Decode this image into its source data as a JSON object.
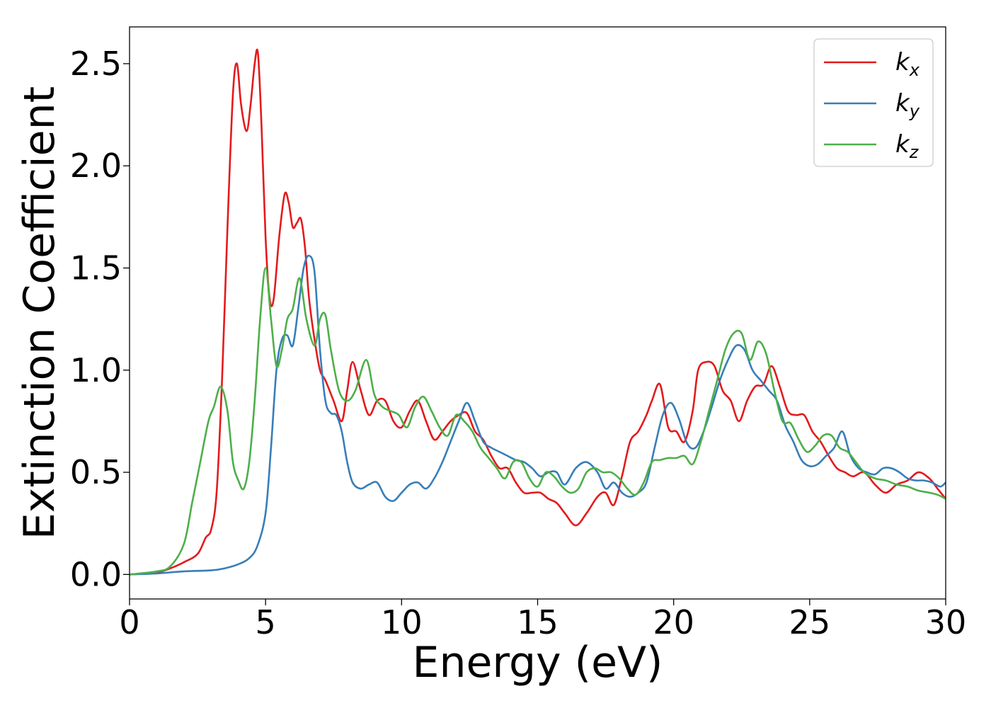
{
  "chart_data": {
    "type": "line",
    "xlabel": "Energy (eV)",
    "ylabel": "Extinction Coefficient",
    "xlim": [
      0,
      30
    ],
    "ylim": [
      -0.12,
      2.68
    ],
    "xticks": [
      0,
      5,
      10,
      15,
      20,
      25,
      30
    ],
    "xtick_labels": [
      "0",
      "5",
      "10",
      "15",
      "20",
      "25",
      "30"
    ],
    "yticks": [
      0.0,
      0.5,
      1.0,
      1.5,
      2.0,
      2.5
    ],
    "ytick_labels": [
      "0.0",
      "0.5",
      "1.0",
      "1.5",
      "2.0",
      "2.5"
    ],
    "grid": false,
    "legend_position": "top-right",
    "series": [
      {
        "name": "k",
        "subscript": "x",
        "color": "#e41a1c",
        "x": [
          0,
          1,
          1.5,
          2,
          2.5,
          2.8,
          3.0,
          3.2,
          3.4,
          3.6,
          3.8,
          3.95,
          4.1,
          4.3,
          4.45,
          4.6,
          4.72,
          4.85,
          5.0,
          5.15,
          5.3,
          5.5,
          5.7,
          5.85,
          6.0,
          6.15,
          6.3,
          6.45,
          6.6,
          6.8,
          7.0,
          7.2,
          7.5,
          7.8,
          8.0,
          8.2,
          8.5,
          8.8,
          9.1,
          9.4,
          9.7,
          10.0,
          10.3,
          10.6,
          10.9,
          11.2,
          11.5,
          11.8,
          12.1,
          12.4,
          12.7,
          13.0,
          13.3,
          13.6,
          13.9,
          14.2,
          14.5,
          14.8,
          15.1,
          15.4,
          15.7,
          16.0,
          16.4,
          16.8,
          17.2,
          17.5,
          17.8,
          18.1,
          18.4,
          18.7,
          19.0,
          19.2,
          19.5,
          19.8,
          20.1,
          20.4,
          20.7,
          20.9,
          21.2,
          21.5,
          21.8,
          22.1,
          22.4,
          22.7,
          23.0,
          23.3,
          23.6,
          23.9,
          24.2,
          24.5,
          24.8,
          25.1,
          25.4,
          25.7,
          26.0,
          26.3,
          26.6,
          27.0,
          27.4,
          27.8,
          28.2,
          28.6,
          29.0,
          29.4,
          29.7,
          30.0
        ],
        "values": [
          0,
          0.01,
          0.03,
          0.06,
          0.1,
          0.18,
          0.22,
          0.4,
          0.95,
          1.7,
          2.35,
          2.5,
          2.3,
          2.17,
          2.3,
          2.5,
          2.55,
          2.2,
          1.65,
          1.35,
          1.35,
          1.65,
          1.86,
          1.82,
          1.7,
          1.72,
          1.74,
          1.6,
          1.35,
          1.15,
          1.0,
          0.95,
          0.85,
          0.75,
          0.9,
          1.04,
          0.9,
          0.78,
          0.85,
          0.85,
          0.75,
          0.72,
          0.8,
          0.85,
          0.75,
          0.66,
          0.7,
          0.75,
          0.78,
          0.79,
          0.7,
          0.66,
          0.58,
          0.52,
          0.52,
          0.45,
          0.4,
          0.4,
          0.4,
          0.37,
          0.35,
          0.3,
          0.24,
          0.3,
          0.38,
          0.4,
          0.34,
          0.48,
          0.65,
          0.7,
          0.78,
          0.85,
          0.93,
          0.72,
          0.7,
          0.65,
          0.8,
          1.0,
          1.04,
          1.02,
          0.9,
          0.85,
          0.75,
          0.85,
          0.92,
          0.93,
          1.02,
          0.92,
          0.8,
          0.78,
          0.78,
          0.7,
          0.65,
          0.58,
          0.52,
          0.5,
          0.48,
          0.5,
          0.44,
          0.4,
          0.44,
          0.46,
          0.5,
          0.47,
          0.42,
          0.37
        ]
      },
      {
        "name": "k",
        "subscript": "y",
        "color": "#377eb8",
        "x": [
          0,
          1,
          2,
          3,
          3.5,
          4,
          4.4,
          4.7,
          5.0,
          5.2,
          5.4,
          5.6,
          5.8,
          6.0,
          6.2,
          6.4,
          6.6,
          6.8,
          7.0,
          7.2,
          7.4,
          7.6,
          7.8,
          8.0,
          8.2,
          8.5,
          8.8,
          9.1,
          9.4,
          9.7,
          10.0,
          10.3,
          10.6,
          10.9,
          11.2,
          11.5,
          11.8,
          12.1,
          12.4,
          12.7,
          13.0,
          13.3,
          13.6,
          13.9,
          14.2,
          14.5,
          14.8,
          15.1,
          15.4,
          15.7,
          16.0,
          16.4,
          16.8,
          17.2,
          17.5,
          17.8,
          18.1,
          18.4,
          18.7,
          19.0,
          19.3,
          19.6,
          19.9,
          20.2,
          20.5,
          20.8,
          21.1,
          21.4,
          21.7,
          22.0,
          22.3,
          22.6,
          22.9,
          23.2,
          23.5,
          23.8,
          24.1,
          24.4,
          24.7,
          25.0,
          25.3,
          25.6,
          25.9,
          26.2,
          26.5,
          26.8,
          27.1,
          27.4,
          27.7,
          28.0,
          28.3,
          28.6,
          28.9,
          29.2,
          29.5,
          29.8,
          30.0
        ],
        "values": [
          0,
          0.005,
          0.015,
          0.02,
          0.03,
          0.05,
          0.08,
          0.14,
          0.3,
          0.62,
          1.0,
          1.15,
          1.17,
          1.12,
          1.3,
          1.5,
          1.56,
          1.48,
          1.1,
          0.85,
          0.79,
          0.78,
          0.7,
          0.55,
          0.45,
          0.42,
          0.44,
          0.45,
          0.38,
          0.36,
          0.4,
          0.44,
          0.45,
          0.42,
          0.47,
          0.55,
          0.65,
          0.75,
          0.84,
          0.75,
          0.65,
          0.62,
          0.6,
          0.58,
          0.56,
          0.55,
          0.52,
          0.48,
          0.5,
          0.5,
          0.44,
          0.52,
          0.55,
          0.5,
          0.42,
          0.45,
          0.4,
          0.38,
          0.4,
          0.45,
          0.62,
          0.78,
          0.84,
          0.76,
          0.64,
          0.62,
          0.7,
          0.82,
          0.95,
          1.05,
          1.12,
          1.1,
          1.0,
          0.95,
          0.9,
          0.85,
          0.73,
          0.65,
          0.56,
          0.53,
          0.54,
          0.58,
          0.62,
          0.7,
          0.58,
          0.52,
          0.5,
          0.49,
          0.52,
          0.52,
          0.5,
          0.47,
          0.46,
          0.46,
          0.45,
          0.43,
          0.45
        ]
      },
      {
        "name": "k",
        "subscript": "z",
        "color": "#4daf4a",
        "x": [
          0,
          1,
          1.5,
          2,
          2.3,
          2.6,
          2.9,
          3.1,
          3.35,
          3.6,
          3.8,
          4.0,
          4.2,
          4.4,
          4.6,
          4.8,
          5.0,
          5.2,
          5.4,
          5.6,
          5.8,
          6.0,
          6.25,
          6.5,
          6.8,
          7.0,
          7.2,
          7.4,
          7.7,
          8.0,
          8.3,
          8.7,
          9.0,
          9.3,
          9.6,
          9.9,
          10.2,
          10.5,
          10.8,
          11.1,
          11.4,
          11.7,
          12.0,
          12.3,
          12.6,
          12.9,
          13.2,
          13.5,
          13.8,
          14.1,
          14.4,
          14.7,
          15.0,
          15.3,
          15.6,
          15.9,
          16.2,
          16.5,
          16.8,
          17.1,
          17.4,
          17.7,
          18.0,
          18.3,
          18.6,
          18.9,
          19.2,
          19.5,
          19.8,
          20.1,
          20.4,
          20.7,
          21.0,
          21.3,
          21.6,
          21.9,
          22.2,
          22.5,
          22.8,
          23.1,
          23.4,
          23.7,
          24.0,
          24.3,
          24.6,
          24.9,
          25.2,
          25.5,
          25.8,
          26.1,
          26.4,
          26.7,
          27.0,
          27.4,
          27.8,
          28.2,
          28.6,
          29.0,
          29.4,
          29.7,
          30.0
        ],
        "values": [
          0,
          0.015,
          0.04,
          0.15,
          0.35,
          0.55,
          0.75,
          0.82,
          0.92,
          0.8,
          0.55,
          0.46,
          0.42,
          0.55,
          0.85,
          1.25,
          1.5,
          1.25,
          1.02,
          1.1,
          1.25,
          1.3,
          1.45,
          1.25,
          1.12,
          1.25,
          1.27,
          1.1,
          0.9,
          0.85,
          0.9,
          1.05,
          0.88,
          0.82,
          0.8,
          0.78,
          0.72,
          0.82,
          0.87,
          0.8,
          0.72,
          0.68,
          0.78,
          0.75,
          0.7,
          0.62,
          0.57,
          0.52,
          0.47,
          0.55,
          0.55,
          0.47,
          0.43,
          0.5,
          0.48,
          0.43,
          0.4,
          0.42,
          0.5,
          0.52,
          0.5,
          0.5,
          0.47,
          0.42,
          0.39,
          0.45,
          0.55,
          0.56,
          0.57,
          0.57,
          0.58,
          0.54,
          0.65,
          0.8,
          0.95,
          1.1,
          1.18,
          1.18,
          1.05,
          1.14,
          1.08,
          0.9,
          0.75,
          0.74,
          0.66,
          0.6,
          0.63,
          0.68,
          0.68,
          0.62,
          0.6,
          0.55,
          0.5,
          0.47,
          0.46,
          0.44,
          0.43,
          0.41,
          0.4,
          0.39,
          0.37
        ]
      }
    ]
  }
}
